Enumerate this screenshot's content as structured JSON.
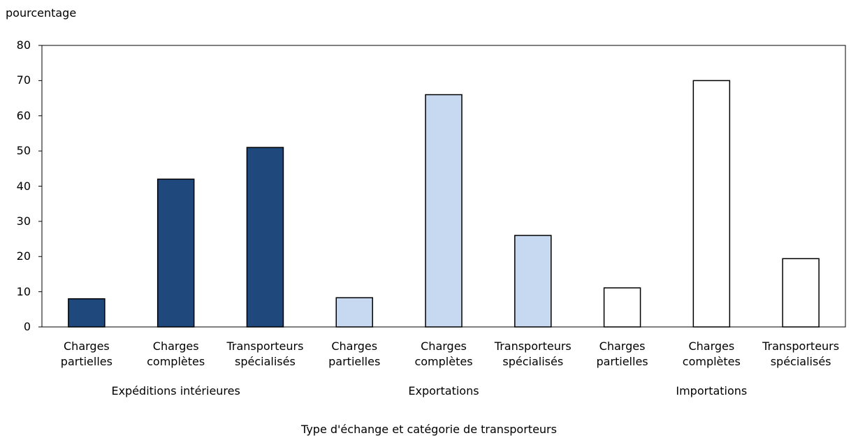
{
  "chart_data": {
    "type": "bar",
    "y_axis_label": "pourcentage",
    "x_axis_label": "Type d'échange et catégorie de transporteurs",
    "ylim": [
      0,
      80
    ],
    "yticks": [
      0,
      10,
      20,
      30,
      40,
      50,
      60,
      70,
      80
    ],
    "grid": false,
    "groups": [
      {
        "name": "Expéditions intérieures",
        "color": "#1f497d",
        "categories": [
          "Charges partielles",
          "Charges complètes",
          "Transporteurs spécialisés"
        ],
        "values": [
          8,
          42,
          51
        ]
      },
      {
        "name": "Exportations",
        "color": "#c6d9f0",
        "categories": [
          "Charges partielles",
          "Charges complètes",
          "Transporteurs spécialisés"
        ],
        "values": [
          8.3,
          66,
          26
        ]
      },
      {
        "name": "Importations",
        "color": "#ffffff",
        "categories": [
          "Charges partielles",
          "Charges complètes",
          "Transporteurs spécialisés"
        ],
        "values": [
          11.1,
          70,
          19.4
        ]
      }
    ]
  }
}
